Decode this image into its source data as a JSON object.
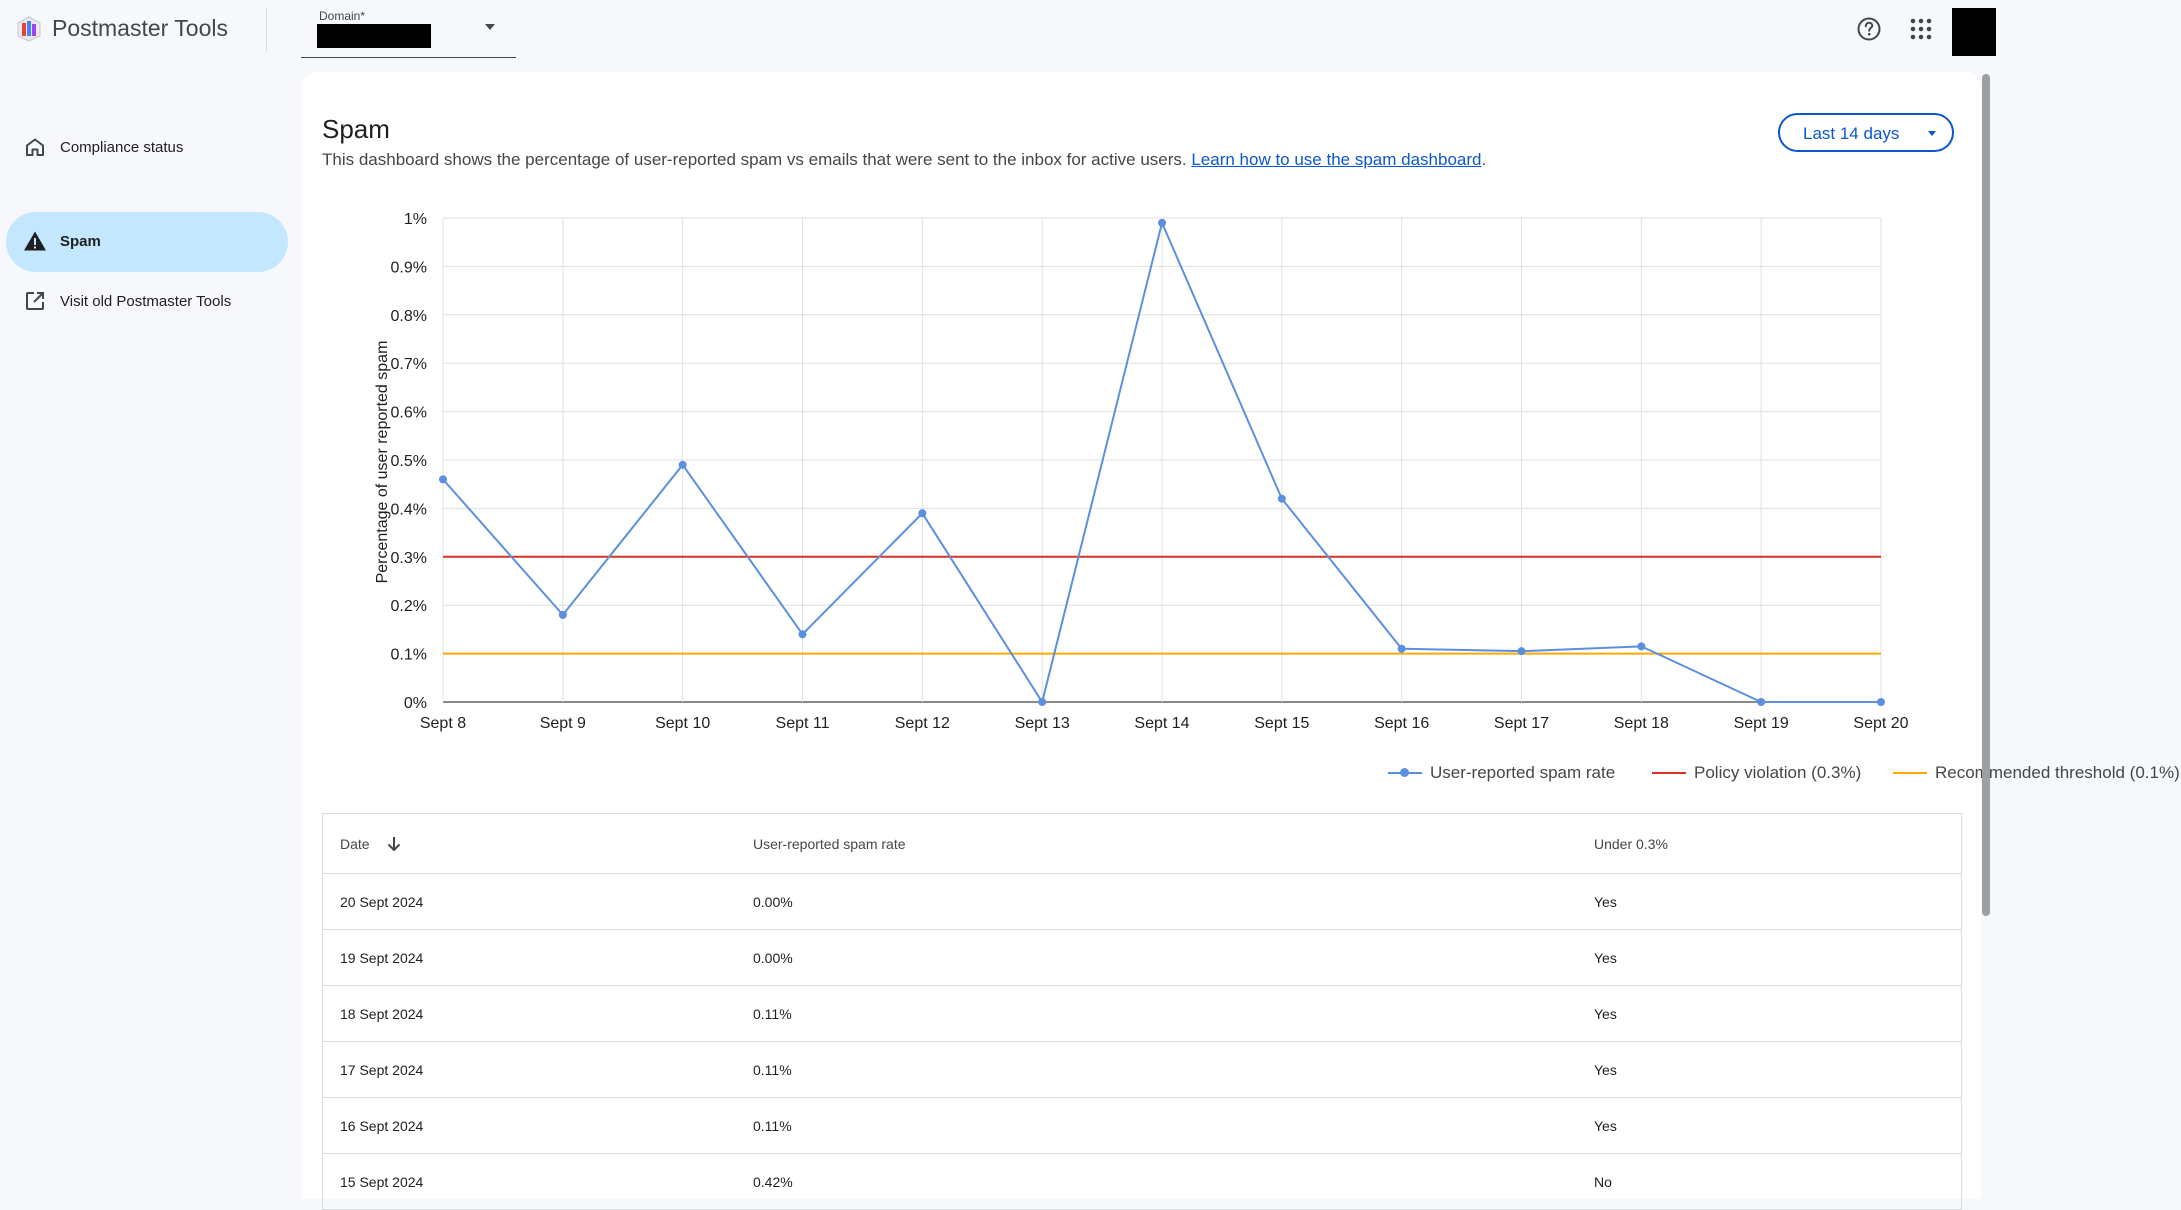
{
  "header": {
    "app_title": "Postmaster Tools",
    "domain_label": "Domain*",
    "domain_value": ""
  },
  "sidebar": {
    "items": [
      {
        "label": "Compliance status",
        "icon": "home-icon",
        "active": false
      },
      {
        "label": "Spam",
        "icon": "warning-icon",
        "active": true
      },
      {
        "label": "Visit old Postmaster Tools",
        "icon": "open-in-new-icon",
        "active": false
      }
    ]
  },
  "main": {
    "title": "Spam",
    "description": "This dashboard shows the percentage of user-reported spam vs emails that were sent to the inbox for active users.",
    "link_text": "Learn how to use the spam dashboard",
    "range": "Last 14 days"
  },
  "chart_data": {
    "type": "line",
    "ylabel": "Percentage of user reported spam",
    "xlabel": "",
    "categories": [
      "Sept 8",
      "Sept 9",
      "Sept 10",
      "Sept 11",
      "Sept 12",
      "Sept 13",
      "Sept 14",
      "Sept 15",
      "Sept 16",
      "Sept 17",
      "Sept 18",
      "Sept 19",
      "Sept 20"
    ],
    "yticks": [
      "0%",
      "0.1%",
      "0.2%",
      "0.3%",
      "0.4%",
      "0.5%",
      "0.6%",
      "0.7%",
      "0.8%",
      "0.9%",
      "1%"
    ],
    "ylim": [
      0,
      1
    ],
    "series": [
      {
        "name": "User-reported spam rate",
        "color": "#5b8fe0",
        "values": [
          0.46,
          0.18,
          0.49,
          0.14,
          0.39,
          0.0,
          0.99,
          0.42,
          0.11,
          0.105,
          0.115,
          0.0,
          0.0
        ]
      }
    ],
    "thresholds": [
      {
        "name": "Policy violation (0.3%)",
        "value": 0.3,
        "color": "#d93025"
      },
      {
        "name": "Recommended threshold (0.1%)",
        "value": 0.1,
        "color": "#f9ab00"
      }
    ],
    "grid": true,
    "legend_position": "bottom-right"
  },
  "table": {
    "headers": [
      "Date",
      "User-reported spam rate",
      "Under 0.3%"
    ],
    "rows": [
      [
        "20 Sept 2024",
        "0.00%",
        "Yes"
      ],
      [
        "19 Sept 2024",
        "0.00%",
        "Yes"
      ],
      [
        "18 Sept 2024",
        "0.11%",
        "Yes"
      ],
      [
        "17 Sept 2024",
        "0.11%",
        "Yes"
      ],
      [
        "16 Sept 2024",
        "0.11%",
        "Yes"
      ],
      [
        "15 Sept 2024",
        "0.42%",
        "No"
      ]
    ]
  }
}
